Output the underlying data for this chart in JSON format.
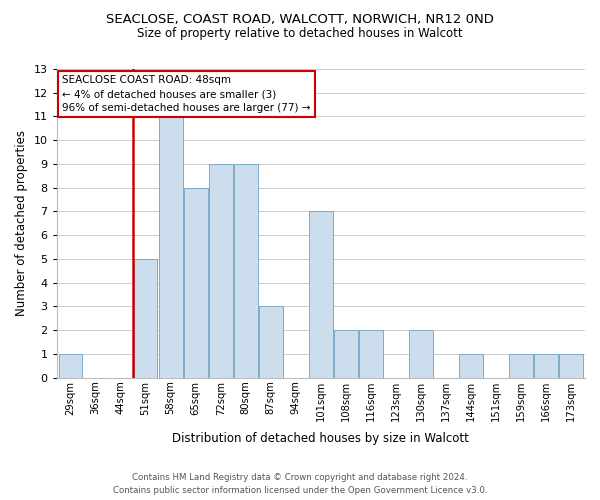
{
  "title": "SEACLOSE, COAST ROAD, WALCOTT, NORWICH, NR12 0ND",
  "subtitle": "Size of property relative to detached houses in Walcott",
  "xlabel": "Distribution of detached houses by size in Walcott",
  "ylabel": "Number of detached properties",
  "categories": [
    "29sqm",
    "36sqm",
    "44sqm",
    "51sqm",
    "58sqm",
    "65sqm",
    "72sqm",
    "80sqm",
    "87sqm",
    "94sqm",
    "101sqm",
    "108sqm",
    "116sqm",
    "123sqm",
    "130sqm",
    "137sqm",
    "144sqm",
    "151sqm",
    "159sqm",
    "166sqm",
    "173sqm"
  ],
  "values": [
    1,
    0,
    0,
    5,
    11,
    8,
    9,
    9,
    3,
    0,
    7,
    2,
    2,
    0,
    2,
    0,
    1,
    0,
    1,
    1,
    1
  ],
  "bar_color": "#ccdded",
  "bar_edge_color": "#7baac8",
  "highlight_line_color": "#cc0000",
  "annotation_title": "SEACLOSE COAST ROAD: 48sqm",
  "annotation_line1": "← 4% of detached houses are smaller (3)",
  "annotation_line2": "96% of semi-detached houses are larger (77) →",
  "annotation_box_color": "#ffffff",
  "annotation_box_edge": "#cc0000",
  "ylim": [
    0,
    13
  ],
  "yticks": [
    0,
    1,
    2,
    3,
    4,
    5,
    6,
    7,
    8,
    9,
    10,
    11,
    12,
    13
  ],
  "footer_line1": "Contains HM Land Registry data © Crown copyright and database right 2024.",
  "footer_line2": "Contains public sector information licensed under the Open Government Licence v3.0.",
  "bg_color": "#ffffff",
  "grid_color": "#cccccc"
}
